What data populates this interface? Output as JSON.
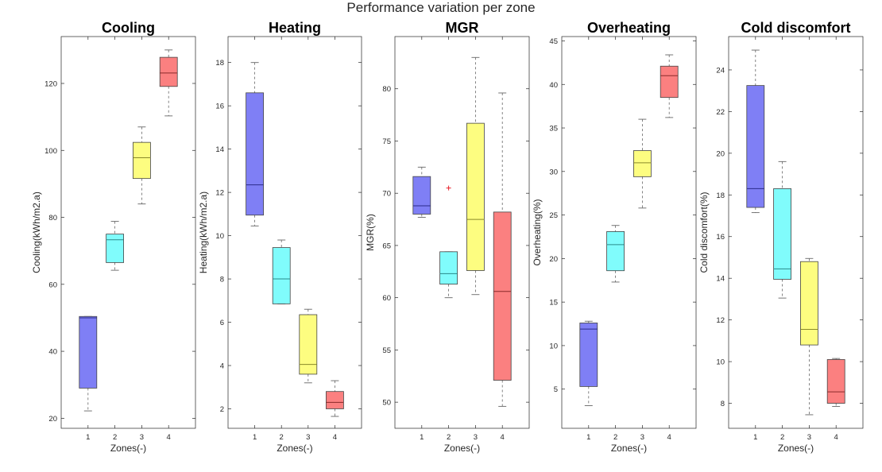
{
  "figure": {
    "suptitle": "Performance variation per zone",
    "colors": {
      "zone1": "#7f7ff5",
      "zone2": "#80fcfc",
      "zone3": "#fdfd80",
      "zone4": "#fb8080",
      "outlier": "#e8202a",
      "axis": "#262626",
      "whisker": "#666666",
      "median_zone1": "#2b2b8a",
      "median_zone2": "#2a8a8a",
      "median_zone3": "#8a8a2a",
      "median_zone4": "#8a2a2a"
    }
  },
  "chart_data": [
    {
      "type": "box",
      "title": "Cooling",
      "xlabel": "Zones(-)",
      "ylabel": "Cooling(kWh/m2.a)",
      "categories": [
        "1",
        "2",
        "3",
        "4"
      ],
      "ylim": [
        17,
        134
      ],
      "yticks": [
        20,
        40,
        60,
        80,
        100,
        120
      ],
      "boxes": [
        {
          "min": 22.2,
          "q1": 29.0,
          "median": 50.0,
          "q3": 50.4,
          "max": 50.4
        },
        {
          "min": 64.2,
          "q1": 66.5,
          "median": 73.3,
          "q3": 75.0,
          "max": 78.8
        },
        {
          "min": 84.0,
          "q1": 91.6,
          "median": 97.8,
          "q3": 102.4,
          "max": 107.0
        },
        {
          "min": 110.3,
          "q1": 119.1,
          "median": 123.1,
          "q3": 127.8,
          "max": 130.0
        }
      ],
      "outliers": []
    },
    {
      "type": "box",
      "title": "Heating",
      "xlabel": "Zones(-)",
      "ylabel": "Heating(kWh/m2.a)",
      "categories": [
        "1",
        "2",
        "3",
        "4"
      ],
      "ylim": [
        1.1,
        19.2
      ],
      "yticks": [
        2,
        4,
        6,
        8,
        10,
        12,
        14,
        16,
        18
      ],
      "boxes": [
        {
          "min": 10.45,
          "q1": 10.95,
          "median": 12.35,
          "q3": 16.6,
          "max": 18.0
        },
        {
          "min": 6.85,
          "q1": 6.85,
          "median": 8.0,
          "q3": 9.45,
          "max": 9.8
        },
        {
          "min": 3.2,
          "q1": 3.6,
          "median": 4.05,
          "q3": 6.35,
          "max": 6.6
        },
        {
          "min": 1.65,
          "q1": 2.0,
          "median": 2.3,
          "q3": 2.8,
          "max": 3.3
        }
      ],
      "outliers": []
    },
    {
      "type": "box",
      "title": "MGR",
      "xlabel": "Zones(-)",
      "ylabel": "MGR(%)",
      "categories": [
        "1",
        "2",
        "3",
        "4"
      ],
      "ylim": [
        47.5,
        85
      ],
      "yticks": [
        50,
        55,
        60,
        65,
        70,
        75,
        80
      ],
      "boxes": [
        {
          "min": 67.7,
          "q1": 68.0,
          "median": 68.8,
          "q3": 71.6,
          "max": 72.5
        },
        {
          "min": 60.0,
          "q1": 61.3,
          "median": 62.3,
          "q3": 64.4,
          "max": 64.4
        },
        {
          "min": 60.3,
          "q1": 62.6,
          "median": 67.5,
          "q3": 76.7,
          "max": 83.0
        },
        {
          "min": 49.6,
          "q1": 52.1,
          "median": 60.6,
          "q3": 68.2,
          "max": 79.6
        }
      ],
      "outliers": [
        {
          "zone": "2",
          "value": 70.5
        }
      ]
    },
    {
      "type": "box",
      "title": "Overheating",
      "xlabel": "Zones(-)",
      "ylabel": "Overheating(%)",
      "categories": [
        "1",
        "2",
        "3",
        "4"
      ],
      "ylim": [
        0.5,
        45.5
      ],
      "yticks": [
        5,
        10,
        15,
        20,
        25,
        30,
        35,
        40,
        45
      ],
      "boxes": [
        {
          "min": 3.1,
          "q1": 5.3,
          "median": 11.9,
          "q3": 12.6,
          "max": 12.8
        },
        {
          "min": 17.3,
          "q1": 18.6,
          "median": 21.6,
          "q3": 23.1,
          "max": 23.8
        },
        {
          "min": 25.8,
          "q1": 29.4,
          "median": 31.0,
          "q3": 32.4,
          "max": 36.0
        },
        {
          "min": 36.2,
          "q1": 38.5,
          "median": 41.0,
          "q3": 42.1,
          "max": 43.4
        }
      ],
      "outliers": []
    },
    {
      "type": "box",
      "title": "Cold discomfort",
      "xlabel": "Zones(-)",
      "ylabel": "Cold discomfort(%)",
      "categories": [
        "1",
        "2",
        "3",
        "4"
      ],
      "ylim": [
        6.8,
        25.6
      ],
      "yticks": [
        8,
        10,
        12,
        14,
        16,
        18,
        20,
        22,
        24
      ],
      "boxes": [
        {
          "min": 17.15,
          "q1": 17.4,
          "median": 18.3,
          "q3": 23.25,
          "max": 24.95
        },
        {
          "min": 13.05,
          "q1": 13.95,
          "median": 14.45,
          "q3": 18.3,
          "max": 19.6
        },
        {
          "min": 7.45,
          "q1": 10.8,
          "median": 11.55,
          "q3": 14.8,
          "max": 14.95
        },
        {
          "min": 7.85,
          "q1": 8.0,
          "median": 8.55,
          "q3": 10.1,
          "max": 10.15
        }
      ],
      "outliers": []
    }
  ]
}
